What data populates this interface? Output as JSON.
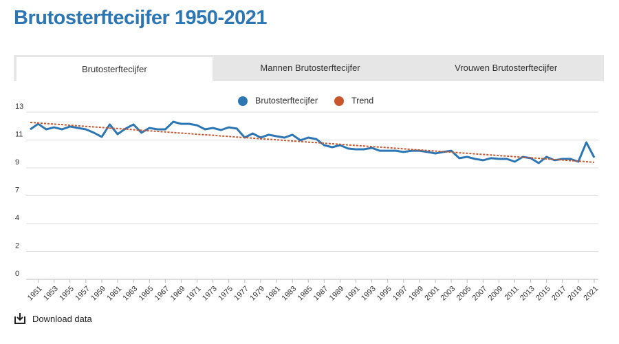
{
  "header": {
    "title": "Brutosterftecijfer 1950-2021"
  },
  "tabs": [
    "Brutosterftecijfer",
    "Mannen Brutosterftecijfer",
    "Vrouwen Brutosterftecijfer"
  ],
  "chart_data": {
    "type": "line",
    "x": [
      1950,
      1951,
      1952,
      1953,
      1954,
      1955,
      1956,
      1957,
      1958,
      1959,
      1960,
      1961,
      1962,
      1963,
      1964,
      1965,
      1966,
      1967,
      1968,
      1969,
      1970,
      1971,
      1972,
      1973,
      1974,
      1975,
      1976,
      1977,
      1978,
      1979,
      1980,
      1981,
      1982,
      1983,
      1984,
      1985,
      1986,
      1987,
      1988,
      1989,
      1990,
      1991,
      1992,
      1993,
      1994,
      1995,
      1996,
      1997,
      1998,
      1999,
      2000,
      2001,
      2002,
      2003,
      2004,
      2005,
      2006,
      2007,
      2008,
      2009,
      2010,
      2011,
      2012,
      2013,
      2014,
      2015,
      2016,
      2017,
      2018,
      2019,
      2020,
      2021
    ],
    "series": [
      {
        "name": "Brutosterftecijfer",
        "color": "#2b76b3",
        "dashed": false,
        "values": [
          11.66,
          12.09,
          11.66,
          11.82,
          11.66,
          11.88,
          11.77,
          11.66,
          11.4,
          11.08,
          12.04,
          11.29,
          11.72,
          12.04,
          11.4,
          11.77,
          11.66,
          11.66,
          12.25,
          12.09,
          12.09,
          11.98,
          11.66,
          11.77,
          11.61,
          11.82,
          11.72,
          11.02,
          11.34,
          11.02,
          11.24,
          11.13,
          11.02,
          11.24,
          10.81,
          11.02,
          10.91,
          10.43,
          10.27,
          10.43,
          10.17,
          10.11,
          10.11,
          10.22,
          10.0,
          10.0,
          10.0,
          9.9,
          10.0,
          10.0,
          9.9,
          9.79,
          9.9,
          10.0,
          9.42,
          9.52,
          9.36,
          9.26,
          9.42,
          9.36,
          9.36,
          9.15,
          9.52,
          9.42,
          9.04,
          9.52,
          9.26,
          9.36,
          9.36,
          9.15,
          10.65,
          9.47
        ]
      },
      {
        "name": "Trend",
        "color": "#c9552c",
        "dashed": true,
        "values": [
          12.2,
          12.16,
          12.11,
          12.07,
          12.03,
          11.98,
          11.94,
          11.89,
          11.85,
          11.81,
          11.76,
          11.72,
          11.68,
          11.63,
          11.59,
          11.55,
          11.5,
          11.46,
          11.41,
          11.37,
          11.33,
          11.28,
          11.24,
          11.2,
          11.15,
          11.11,
          11.06,
          11.02,
          10.98,
          10.93,
          10.89,
          10.85,
          10.8,
          10.76,
          10.72,
          10.67,
          10.63,
          10.58,
          10.54,
          10.5,
          10.45,
          10.41,
          10.37,
          10.32,
          10.28,
          10.24,
          10.19,
          10.15,
          10.1,
          10.06,
          10.02,
          9.97,
          9.93,
          9.89,
          9.84,
          9.8,
          9.76,
          9.71,
          9.67,
          9.62,
          9.58,
          9.54,
          9.49,
          9.45,
          9.41,
          9.36,
          9.32,
          9.28,
          9.23,
          9.19,
          9.15,
          9.1
        ]
      }
    ],
    "xlim": [
      1950,
      2021
    ],
    "xticks": [
      1951,
      1953,
      1955,
      1957,
      1959,
      1961,
      1963,
      1965,
      1967,
      1969,
      1971,
      1973,
      1975,
      1977,
      1979,
      1981,
      1983,
      1985,
      1987,
      1989,
      1991,
      1993,
      1995,
      1997,
      1999,
      2001,
      2003,
      2005,
      2007,
      2009,
      2011,
      2013,
      2015,
      2017,
      2019,
      2021
    ],
    "ylim": [
      0,
      13
    ],
    "yticks": [
      0,
      {
        "value": 2.1667,
        "label": "2"
      },
      {
        "value": 4.3333,
        "label": "4"
      },
      {
        "value": 6.5,
        "label": "7"
      },
      {
        "value": 8.6667,
        "label": "9"
      },
      {
        "value": 10.8333,
        "label": "11"
      },
      13
    ],
    "grid": true,
    "legend": "top"
  },
  "footer": {
    "download": "Download data"
  }
}
